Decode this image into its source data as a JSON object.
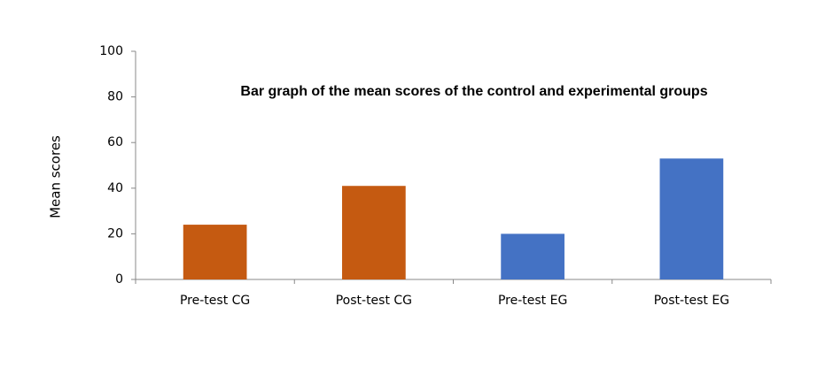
{
  "chart_data": {
    "type": "bar",
    "title": "Bar graph of the mean scores of the control and experimental groups",
    "y_label": "Mean scores",
    "categories": [
      "Pre-test CG",
      "Post-test CG",
      "Pre-test EG",
      "Post-test EG"
    ],
    "values": [
      24,
      41,
      20,
      53
    ],
    "colors": [
      "#c55a11",
      "#c55a11",
      "#4472c4",
      "#4472c4"
    ],
    "ylim": [
      0,
      100
    ],
    "yticks": [
      0,
      20,
      40,
      60,
      80,
      100
    ],
    "grid": false
  }
}
